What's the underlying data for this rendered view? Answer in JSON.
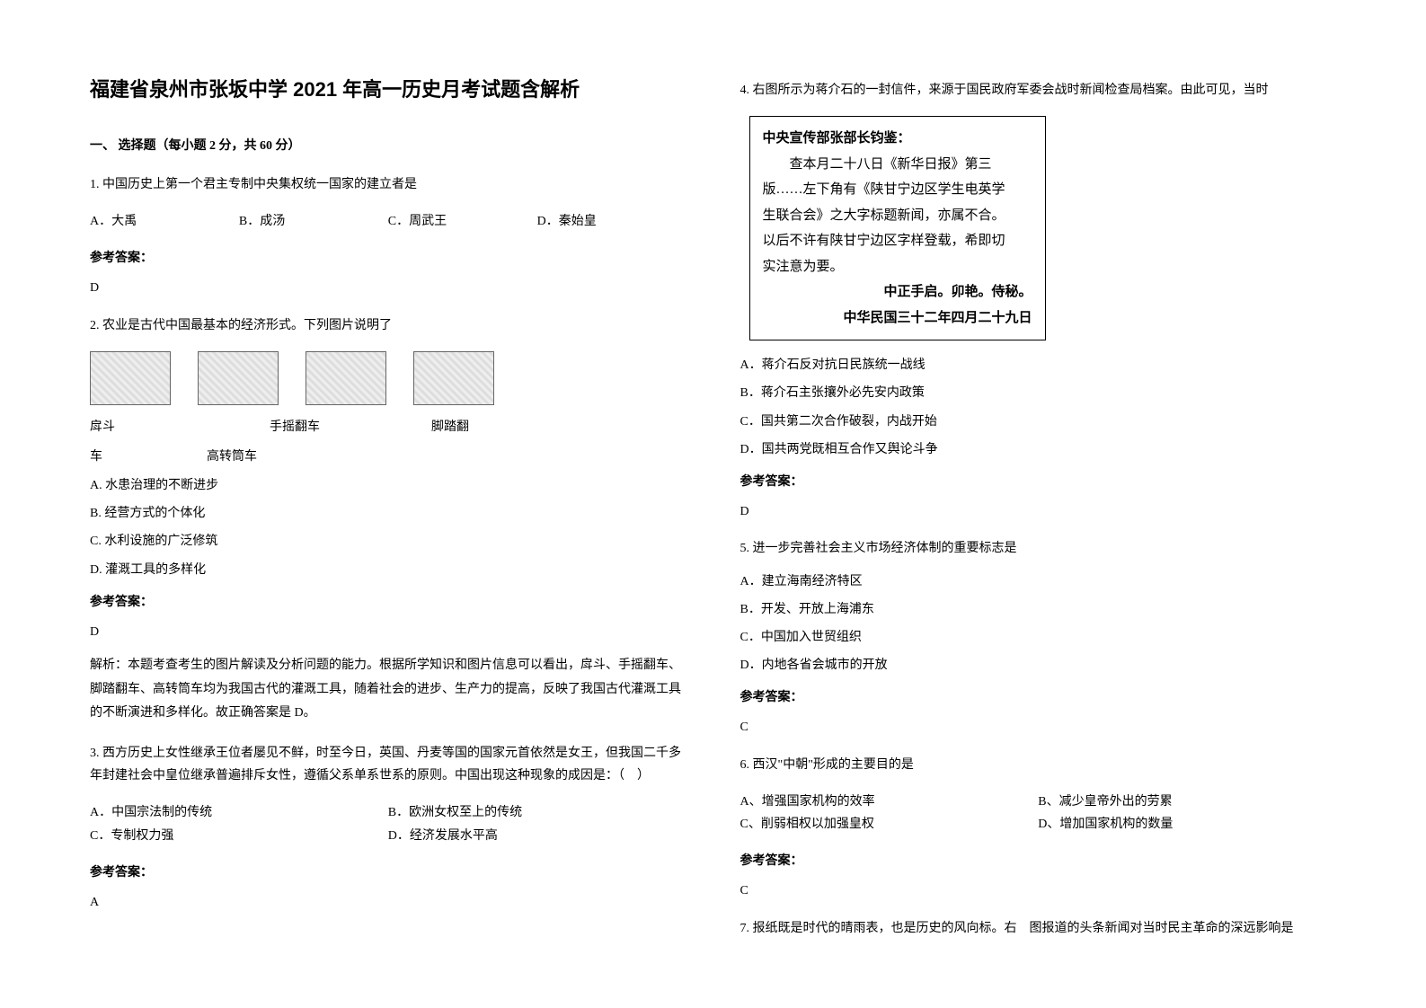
{
  "title": "福建省泉州市张坂中学 2021 年高一历史月考试题含解析",
  "section1": "一、 选择题（每小题 2 分，共 60 分）",
  "answer_label": "参考答案：",
  "q1": {
    "text": "1. 中国历史上第一个君主专制中央集权统一国家的建立者是",
    "optA": "A．大禹",
    "optB": "B．成汤",
    "optC": "C．周武王",
    "optD": "D．秦始皇",
    "answer": "D"
  },
  "q2": {
    "text": "2. 农业是古代中国最基本的经济形式。下列图片说明了",
    "cap1": "戽斗",
    "cap2": "手摇翻车",
    "cap3": "脚踏翻",
    "cap4": "车",
    "cap5": "高转筒车",
    "optA": "A. 水患治理的不断进步",
    "optB": "B. 经营方式的个体化",
    "optC": "C. 水利设施的广泛修筑",
    "optD": "D. 灌溉工具的多样化",
    "answer": "D",
    "explanation": "解析：本题考查考生的图片解读及分析问题的能力。根据所学知识和图片信息可以看出，戽斗、手摇翻车、脚踏翻车、高转筒车均为我国古代的灌溉工具，随着社会的进步、生产力的提高，反映了我国古代灌溉工具的不断演进和多样化。故正确答案是 D。"
  },
  "q3": {
    "text": "3. 西方历史上女性继承王位者屡见不鲜，时至今日，英国、丹麦等国的国家元首依然是女王，但我国二千多年封建社会中皇位继承普遍排斥女性，遵循父系单系世系的原则。中国出现这种现象的成因是：（　）",
    "optA": "A．中国宗法制的传统",
    "optB": "B．欧洲女权至上的传统",
    "optC": "C．专制权力强",
    "optD": "D．经济发展水平高",
    "answer": "A"
  },
  "q4": {
    "text": "4. 右图所示为蒋介石的一封信件，来源于国民政府军委会战时新闻检查局档案。由此可见，当时",
    "letter_greeting": "中央宣传部张部长钧鉴：",
    "letter_body1": "查本月二十八日《新华日报》第三",
    "letter_body2": "版……左下角有《陕甘宁边区学生电英学",
    "letter_body3": "生联合会》之大字标题新闻，亦属不合。",
    "letter_body4": "以后不许有陕甘宁边区字样登载，希即切",
    "letter_body5": "实注意为要。",
    "letter_sig": "中正手启。卯艳。侍秘。",
    "letter_date": "中华民国三十二年四月二十九日",
    "optA": "A．蒋介石反对抗日民族统一战线",
    "optB": "B．蒋介石主张攘外必先安内政策",
    "optC": "C．国共第二次合作破裂，内战开始",
    "optD": "D．国共两党既相互合作又舆论斗争",
    "answer": "D"
  },
  "q5": {
    "text": "5. 进一步完善社会主义市场经济体制的重要标志是",
    "optA": "A．建立海南经济特区",
    "optB": "B．开发、开放上海浦东",
    "optC": "C．中国加入世贸组织",
    "optD": "D．内地各省会城市的开放",
    "answer": "C"
  },
  "q6": {
    "text": "6. 西汉\"中朝\"形成的主要目的是",
    "optA": "A、增强国家机构的效率",
    "optB": "B、减少皇帝外出的劳累",
    "optC": "C、削弱相权以加强皇权",
    "optD": "D、增加国家机构的数量",
    "answer": "C"
  },
  "q7": {
    "text": "7. 报纸既是时代的晴雨表，也是历史的风向标。右　图报道的头条新闻对当时民主革命的深远影响是"
  }
}
